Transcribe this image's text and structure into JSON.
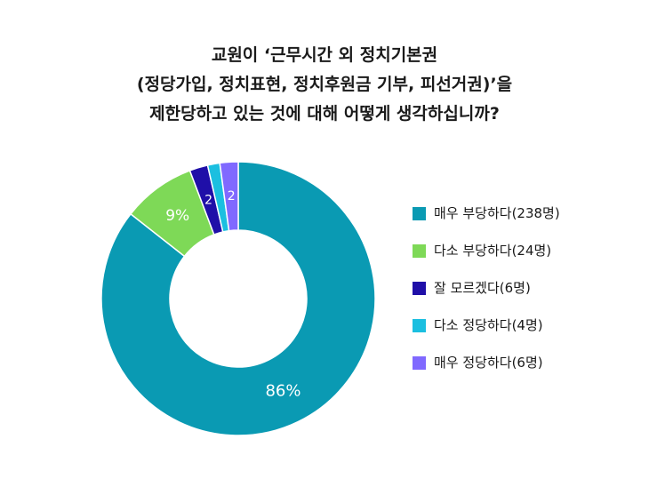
{
  "title_lines": [
    "교원이 ‘근무시간 외 정치기본권",
    "(정당가입, 정치표현, 정치후원금 기부, 피선거권)’을",
    "제한당하고 있는 것에 대해 어떻게 생각하십니까?"
  ],
  "chart_data": {
    "type": "pie",
    "variant": "donut",
    "title": "교원이 ‘근무시간 외 정치기본권 (정당가입, 정치표현, 정치후원금 기부, 피선거권)’을 제한당하고 있는 것에 대해 어떻게 생각하십니까?",
    "legend_position": "right",
    "slices": [
      {
        "label": "매우 부당하다(238명)",
        "count": 238,
        "percent": 86,
        "data_label": "86%",
        "color": "#0a9ab3"
      },
      {
        "label": "다소 부당하다(24명)",
        "count": 24,
        "percent": 9,
        "data_label": "9%",
        "color": "#7ed957"
      },
      {
        "label": "잘 모르겠다(6명)",
        "count": 6,
        "percent": 2,
        "data_label": "2",
        "color": "#1f0fa8"
      },
      {
        "label": "다소 정당하다(4명)",
        "count": 4,
        "percent": 1,
        "data_label": "",
        "color": "#1bbfe0"
      },
      {
        "label": "매우 정당하다(6명)",
        "count": 6,
        "percent": 2,
        "data_label": "2",
        "color": "#8069ff"
      }
    ]
  }
}
